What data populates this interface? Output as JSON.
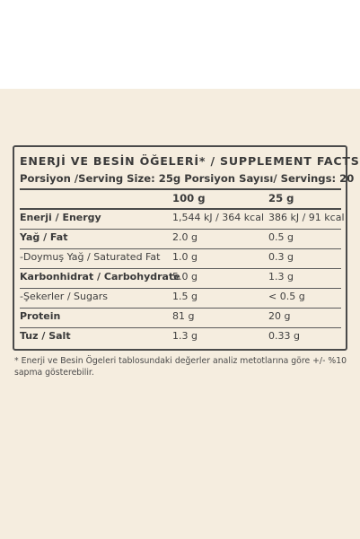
{
  "title": "ENERJİ VE BESİN ÖĞELERİ* / SUPPLEMENT FACTS*",
  "serving_line": "Porsiyon /Serving Size: 25g Porsiyon Sayısı/ Servings: 20",
  "columns": {
    "per100": "100 g",
    "per25": "25 g"
  },
  "rows": [
    {
      "label": "Enerji / Energy",
      "v100": "1,544 kJ / 364 kcal",
      "v25": "386 kJ / 91 kcal",
      "bold": true
    },
    {
      "label": "Yağ / Fat",
      "v100": "2.0 g",
      "v25": "0.5 g",
      "bold": true
    },
    {
      "label": "-Doymuş Yağ / Saturated Fat",
      "v100": "1.0 g",
      "v25": "0.3 g",
      "bold": false
    },
    {
      "label": "Karbonhidrat / Carbohydrate",
      "v100": "5.0 g",
      "v25": "1.3 g",
      "bold": true
    },
    {
      "label": "-Şekerler / Sugars",
      "v100": "1.5 g",
      "v25": "< 0.5 g",
      "bold": false
    },
    {
      "label": "Protein",
      "v100": "81 g",
      "v25": "20 g",
      "bold": true
    },
    {
      "label": "Tuz / Salt",
      "v100": "1.3 g",
      "v25": "0.33 g",
      "bold": true
    }
  ],
  "footnote": "* Enerji ve Besin Ögeleri tablosundaki değerler analiz metotlarına göre +/- %10 sapma gösterebilir."
}
